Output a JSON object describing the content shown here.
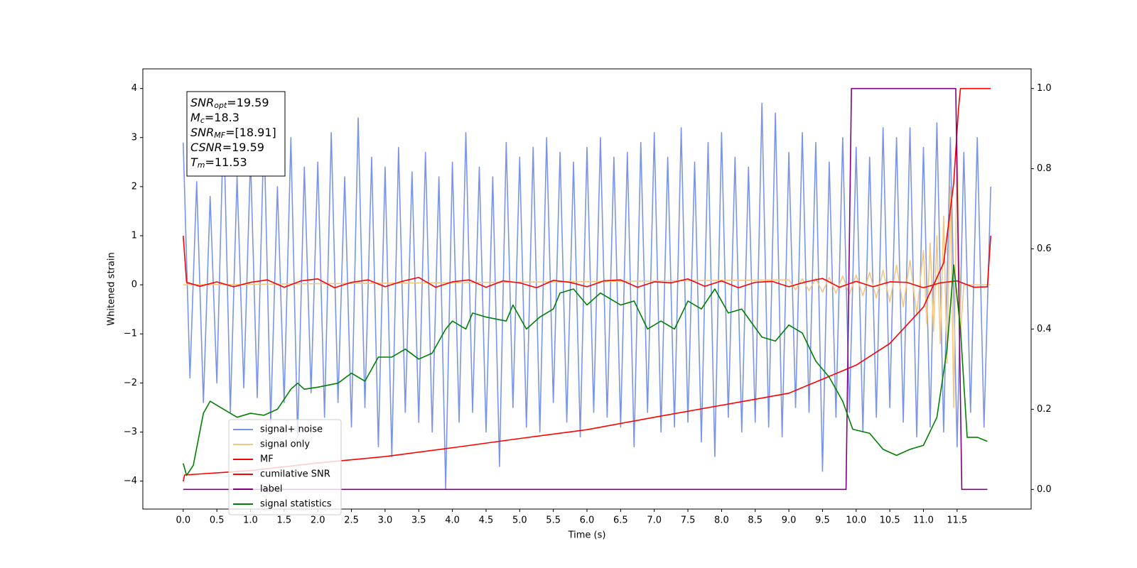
{
  "chart_data": {
    "type": "line",
    "xlabel": "Time (s)",
    "ylabel": "Whitened strain",
    "xlim": [
      -0.6,
      12.6
    ],
    "ylim": [
      -4.57,
      4.4
    ],
    "y2lim": [
      -0.049,
      1.049
    ],
    "xticks": [
      {
        "value": 0,
        "label": "0.0"
      },
      0.5,
      {
        "value": 1,
        "label": "1.0"
      },
      1.5,
      {
        "value": 2,
        "label": "2.0"
      },
      2.5,
      {
        "value": 3,
        "label": "3.0"
      },
      3.5,
      {
        "value": 4,
        "label": "4.0"
      },
      4.5,
      {
        "value": 5,
        "label": "5.0"
      },
      5.5,
      {
        "value": 6,
        "label": "6.0"
      },
      6.5,
      {
        "value": 7,
        "label": "7.0"
      },
      7.5,
      {
        "value": 8,
        "label": "8.0"
      },
      8.5,
      {
        "value": 9,
        "label": "9.0"
      },
      9.5,
      {
        "value": 10,
        "label": "10.0"
      },
      10.5,
      {
        "value": 11,
        "label": "11.0"
      },
      11.5
    ],
    "yticks": [
      {
        "value": -4,
        "label": "−4"
      },
      {
        "value": -3,
        "label": "−3"
      },
      {
        "value": -2,
        "label": "−2"
      },
      {
        "value": -1,
        "label": "−1"
      },
      0,
      1,
      2,
      3,
      4
    ],
    "y2ticks": [
      {
        "value": 0,
        "label": "0.0"
      },
      0.2,
      0.4,
      0.6,
      0.8,
      {
        "value": 1,
        "label": "1.0"
      }
    ],
    "legend": "lower left",
    "annotation": [
      {
        "symbol": "SNR",
        "sub": "opt",
        "text": "=19.59"
      },
      {
        "symbol": "M",
        "sub": "c",
        "text": "=18.3"
      },
      {
        "symbol": "SNR",
        "sub": "MF",
        "text": "=[18.91]"
      },
      {
        "symbol": "CSNR",
        "sub": "",
        "text": "=19.59"
      },
      {
        "symbol": "T",
        "sub": "m",
        "text": "=11.53"
      }
    ],
    "series": [
      {
        "name": "signal+ noise",
        "color": "#7a95e8",
        "x": [
          0,
          0.1,
          0.2,
          0.3,
          0.4,
          0.5,
          0.6,
          0.7,
          0.8,
          0.9,
          1,
          1.1,
          1.2,
          1.3,
          1.4,
          1.5,
          1.6,
          1.7,
          1.8,
          1.9,
          2,
          2.1,
          2.2,
          2.3,
          2.4,
          2.5,
          2.6,
          2.7,
          2.8,
          2.9,
          3,
          3.1,
          3.2,
          3.3,
          3.4,
          3.5,
          3.6,
          3.7,
          3.8,
          3.9,
          4,
          4.1,
          4.2,
          4.3,
          4.4,
          4.5,
          4.6,
          4.7,
          4.8,
          4.9,
          5,
          5.1,
          5.2,
          5.3,
          5.4,
          5.5,
          5.6,
          5.7,
          5.8,
          5.9,
          6,
          6.1,
          6.2,
          6.3,
          6.4,
          6.5,
          6.6,
          6.7,
          6.8,
          6.9,
          7,
          7.1,
          7.2,
          7.3,
          7.4,
          7.5,
          7.6,
          7.7,
          7.8,
          7.9,
          8,
          8.1,
          8.2,
          8.3,
          8.4,
          8.5,
          8.6,
          8.7,
          8.8,
          8.9,
          9,
          9.1,
          9.2,
          9.3,
          9.4,
          9.5,
          9.6,
          9.7,
          9.8,
          9.9,
          10,
          10.1,
          10.2,
          10.3,
          10.4,
          10.5,
          10.6,
          10.7,
          10.8,
          10.9,
          11,
          11.1,
          11.2,
          11.3,
          11.4,
          11.5,
          11.6,
          11.7,
          11.8,
          11.9,
          12
        ],
        "values": [
          2.9,
          -1.9,
          2.1,
          -2.4,
          1.8,
          -2.0,
          3.4,
          -2.6,
          2.2,
          -2.1,
          2.6,
          -2.3,
          3.2,
          -2.8,
          2.0,
          -2.4,
          3.0,
          -3.1,
          2.4,
          -2.2,
          2.5,
          -2.7,
          3.1,
          -2.4,
          2.2,
          -2.9,
          3.4,
          -2.5,
          2.6,
          -3.3,
          2.4,
          -3.5,
          2.8,
          -2.6,
          2.3,
          -2.8,
          2.7,
          -3.0,
          2.2,
          -4.15,
          2.5,
          -2.8,
          3.1,
          -2.6,
          2.4,
          -3.0,
          2.2,
          -3.7,
          2.9,
          -2.5,
          2.6,
          -2.9,
          2.8,
          -3.0,
          3.0,
          -2.4,
          2.7,
          -2.8,
          2.5,
          -3.1,
          2.8,
          -2.6,
          3.0,
          -2.7,
          2.6,
          -2.9,
          2.7,
          -3.3,
          2.9,
          -2.6,
          3.1,
          -3.0,
          2.6,
          -2.9,
          3.2,
          -2.8,
          2.5,
          -3.2,
          2.9,
          -3.5,
          3.1,
          -2.7,
          2.6,
          -3.0,
          2.4,
          -2.8,
          3.7,
          -2.9,
          3.5,
          -3.1,
          2.7,
          -2.5,
          3.1,
          -2.6,
          2.9,
          -3.8,
          2.5,
          -2.7,
          3.0,
          -2.6,
          2.8,
          -3.0,
          2.6,
          -2.7,
          3.2,
          -2.5,
          3.0,
          -2.8,
          3.2,
          -3.1,
          2.8,
          -2.9,
          3.3,
          -3.0,
          3.0,
          -3.3,
          2.7,
          -2.6,
          3.0,
          -2.9,
          2.0
        ]
      },
      {
        "name": "signal only",
        "color": "#f5c77e",
        "x": [
          0,
          9,
          9.1,
          9.2,
          9.3,
          9.4,
          9.5,
          9.6,
          9.7,
          9.8,
          9.9,
          10,
          10.1,
          10.2,
          10.3,
          10.4,
          10.5,
          10.6,
          10.7,
          10.8,
          10.9,
          11,
          11.05,
          11.1,
          11.15,
          11.2,
          11.25,
          11.3,
          11.35,
          11.4,
          11.45,
          11.5,
          11.55,
          11.6,
          12
        ],
        "values": [
          0,
          0.1,
          -0.1,
          0.12,
          -0.12,
          0.13,
          -0.15,
          0.15,
          -0.17,
          0.18,
          -0.19,
          0.2,
          -0.22,
          0.25,
          -0.27,
          0.3,
          -0.35,
          0.4,
          -0.45,
          0.5,
          -0.6,
          0.7,
          -0.8,
          0.85,
          -0.95,
          1.0,
          -1.2,
          1.4,
          -1.6,
          2.0,
          -2.5,
          3.0,
          -1.0,
          0,
          0
        ]
      },
      {
        "name": "MF",
        "color": "#ff0000",
        "x": [
          0,
          0.05,
          0.25,
          0.5,
          0.75,
          1,
          1.25,
          1.5,
          1.75,
          2,
          2.25,
          2.5,
          2.75,
          3,
          3.25,
          3.5,
          3.75,
          4,
          4.25,
          4.5,
          4.75,
          5,
          5.25,
          5.5,
          5.75,
          6,
          6.25,
          6.5,
          6.75,
          7,
          7.25,
          7.5,
          7.75,
          8,
          8.25,
          8.5,
          8.75,
          9,
          9.25,
          9.5,
          9.75,
          10,
          10.25,
          10.5,
          10.75,
          11,
          11.25,
          11.5,
          11.75,
          11.95,
          12
        ],
        "values": [
          1.0,
          0.05,
          -0.03,
          0.06,
          -0.04,
          0.05,
          0.1,
          -0.05,
          0.08,
          0.12,
          -0.06,
          0.05,
          0.1,
          -0.04,
          0.07,
          0.15,
          -0.05,
          0.06,
          0.1,
          -0.05,
          0.08,
          0.04,
          -0.06,
          0.09,
          0.05,
          -0.04,
          0.08,
          0.1,
          -0.05,
          0.06,
          0.04,
          0.12,
          -0.03,
          0.08,
          -0.06,
          0.05,
          0.07,
          -0.04,
          0.06,
          0.13,
          -0.05,
          0.07,
          -0.04,
          0.06,
          0.05,
          -0.06,
          0.04,
          0.08,
          -0.05,
          -0.04,
          1.0
        ]
      },
      {
        "name": "cumilative SNR",
        "color": "#ff0000",
        "axis": "y2",
        "x": [
          0,
          0.02,
          1,
          2,
          3,
          4,
          5,
          6,
          7,
          8,
          9,
          10,
          10.5,
          11,
          11.3,
          11.45,
          11.52,
          11.55,
          12
        ],
        "values": [
          0.02,
          0.036,
          0.047,
          0.066,
          0.082,
          0.104,
          0.127,
          0.149,
          0.18,
          0.21,
          0.24,
          0.31,
          0.364,
          0.455,
          0.565,
          0.765,
          0.947,
          1.0,
          1.0
        ]
      },
      {
        "name": "label",
        "color": "#800080",
        "axis": "y2",
        "x": [
          0,
          9.85,
          9.93,
          11.48,
          11.57,
          11.95
        ],
        "values": [
          0,
          0,
          1,
          1,
          0,
          0
        ]
      },
      {
        "name": "signal statistics",
        "color": "#008000",
        "axis": "y2",
        "x": [
          0,
          0.05,
          0.15,
          0.3,
          0.4,
          0.6,
          0.8,
          1.0,
          1.2,
          1.4,
          1.6,
          1.7,
          1.8,
          2.0,
          2.3,
          2.5,
          2.7,
          2.9,
          3.1,
          3.3,
          3.5,
          3.7,
          3.9,
          4.0,
          4.2,
          4.3,
          4.5,
          4.8,
          4.9,
          5.1,
          5.3,
          5.5,
          5.6,
          5.8,
          6.0,
          6.2,
          6.5,
          6.7,
          6.9,
          7.1,
          7.3,
          7.5,
          7.7,
          7.9,
          8.1,
          8.3,
          8.6,
          8.8,
          9.0,
          9.2,
          9.4,
          9.6,
          9.8,
          9.95,
          10.2,
          10.4,
          10.6,
          10.8,
          11.0,
          11.2,
          11.35,
          11.45,
          11.55,
          11.65,
          11.8,
          11.95
        ],
        "values": [
          0.065,
          0.035,
          0.06,
          0.19,
          0.22,
          0.2,
          0.18,
          0.19,
          0.185,
          0.2,
          0.25,
          0.265,
          0.25,
          0.255,
          0.265,
          0.29,
          0.27,
          0.33,
          0.33,
          0.35,
          0.325,
          0.34,
          0.4,
          0.42,
          0.4,
          0.44,
          0.43,
          0.42,
          0.46,
          0.4,
          0.43,
          0.45,
          0.49,
          0.5,
          0.46,
          0.49,
          0.46,
          0.47,
          0.4,
          0.42,
          0.4,
          0.47,
          0.45,
          0.5,
          0.44,
          0.45,
          0.38,
          0.37,
          0.41,
          0.39,
          0.32,
          0.28,
          0.22,
          0.15,
          0.14,
          0.1,
          0.085,
          0.1,
          0.11,
          0.18,
          0.35,
          0.56,
          0.4,
          0.13,
          0.13,
          0.12
        ]
      }
    ]
  }
}
